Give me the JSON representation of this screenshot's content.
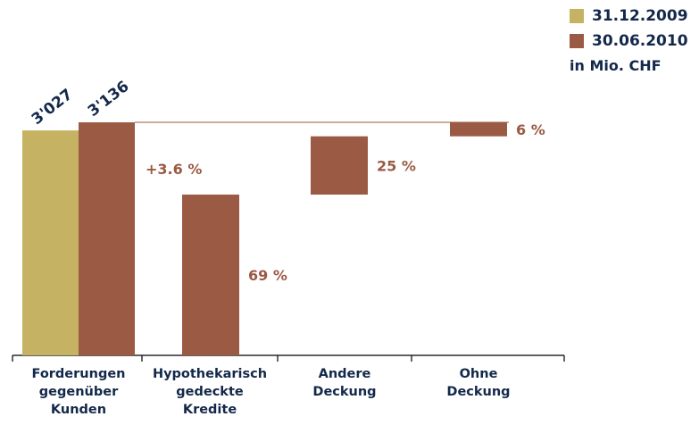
{
  "colors": {
    "series_2009": "#c5b363",
    "series_2010": "#9a5a43",
    "label_dark": "#13284a",
    "label_brown": "#9a5a43",
    "axis": "#000000",
    "refline": "#9a5a43"
  },
  "legend": {
    "items": [
      {
        "label": "31.12.2009",
        "color": "#c5b363"
      },
      {
        "label": "30.06.2010",
        "color": "#9a5a43"
      }
    ],
    "unit": "in Mio. CHF"
  },
  "chart_data": {
    "type": "bar",
    "subtype": "waterfall",
    "unit": "in Mio. CHF",
    "categories": [
      {
        "lines": [
          "Forderungen",
          "gegenüber",
          "Kunden"
        ]
      },
      {
        "lines": [
          "Hypothekarisch",
          "gedeckte",
          "Kredite"
        ]
      },
      {
        "lines": [
          "Andere",
          "Deckung"
        ]
      },
      {
        "lines": [
          "Ohne",
          "Deckung"
        ]
      }
    ],
    "totals": [
      {
        "series": "31.12.2009",
        "value": 3027,
        "label": "3'027",
        "color": "#c5b363"
      },
      {
        "series": "30.06.2010",
        "value": 3136,
        "label": "3'136",
        "color": "#9a5a43"
      }
    ],
    "change_label": "+3.6 %",
    "breakdown": [
      {
        "category_index": 1,
        "share_percent": 69,
        "label": "69 %"
      },
      {
        "category_index": 2,
        "share_percent": 25,
        "label": "25 %"
      },
      {
        "category_index": 3,
        "share_percent": 6,
        "label": "6 %"
      }
    ],
    "legend_position": "top-right",
    "grid": false
  }
}
